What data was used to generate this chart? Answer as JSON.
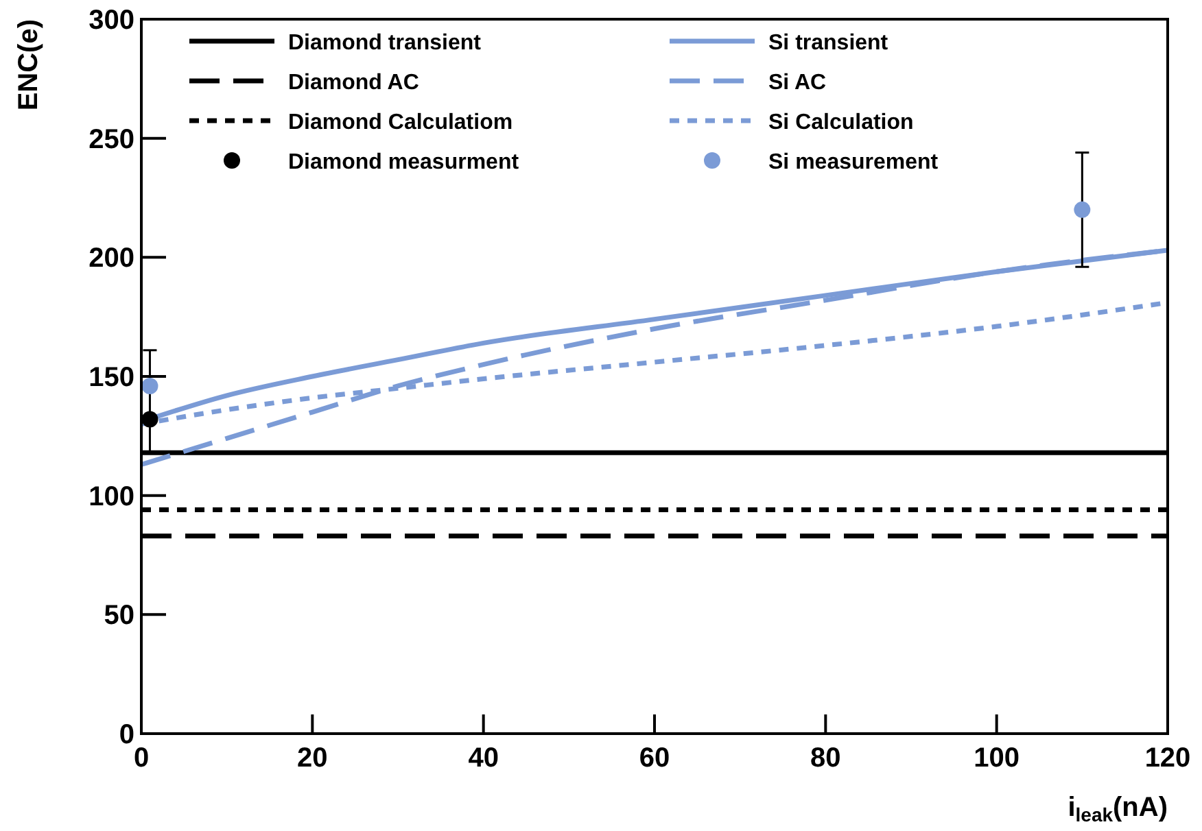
{
  "chart_data": {
    "type": "line",
    "xlabel": "i$_{leak}$(nA)",
    "ylabel": "ENC(e)",
    "xlim": [
      0,
      120
    ],
    "ylim": [
      0,
      300
    ],
    "xticks": [
      0,
      20,
      40,
      60,
      80,
      100,
      120
    ],
    "yticks": [
      0,
      50,
      100,
      150,
      200,
      250,
      300
    ],
    "grid": false,
    "legend": "top",
    "series": [
      {
        "name": "Diamond transient",
        "line_style": "solid",
        "color": "#000000",
        "x": [
          0,
          120
        ],
        "values": [
          118,
          118
        ]
      },
      {
        "name": "Diamond AC",
        "line_style": "dashed",
        "color": "#000000",
        "x": [
          0,
          120
        ],
        "values": [
          83,
          83
        ]
      },
      {
        "name": "Diamond Calculatiom",
        "line_style": "dotted",
        "color": "#000000",
        "x": [
          0,
          120
        ],
        "values": [
          94,
          94
        ]
      },
      {
        "name": "Diamond measurment",
        "type": "scatter",
        "marker": "circle",
        "color": "#000000",
        "x": [
          1
        ],
        "values": [
          132
        ],
        "errors": [
          [
            118,
            161
          ]
        ]
      },
      {
        "name": "Si transient",
        "line_style": "solid",
        "color": "#7b9bd6",
        "x": [
          0,
          10,
          20,
          30,
          40,
          60,
          80,
          100,
          120
        ],
        "values": [
          131,
          142,
          150,
          157,
          164,
          174,
          184,
          194,
          203
        ]
      },
      {
        "name": "Si AC",
        "line_style": "dashed",
        "color": "#7b9bd6",
        "x": [
          0,
          10,
          20,
          30,
          40,
          60,
          80,
          100,
          120
        ],
        "values": [
          113,
          124,
          135,
          146,
          155,
          170,
          182,
          194,
          203
        ]
      },
      {
        "name": "Si Calculation",
        "line_style": "dotted",
        "color": "#7b9bd6",
        "x": [
          0,
          10,
          20,
          30,
          40,
          60,
          80,
          100,
          120
        ],
        "values": [
          130,
          136,
          141,
          145,
          149,
          156,
          163,
          171,
          181
        ]
      },
      {
        "name": "Si measurement",
        "type": "scatter",
        "marker": "circle",
        "color": "#7b9bd6",
        "x": [
          1,
          110
        ],
        "values": [
          146,
          220
        ],
        "errors": [
          null,
          [
            196,
            244
          ]
        ]
      }
    ]
  }
}
